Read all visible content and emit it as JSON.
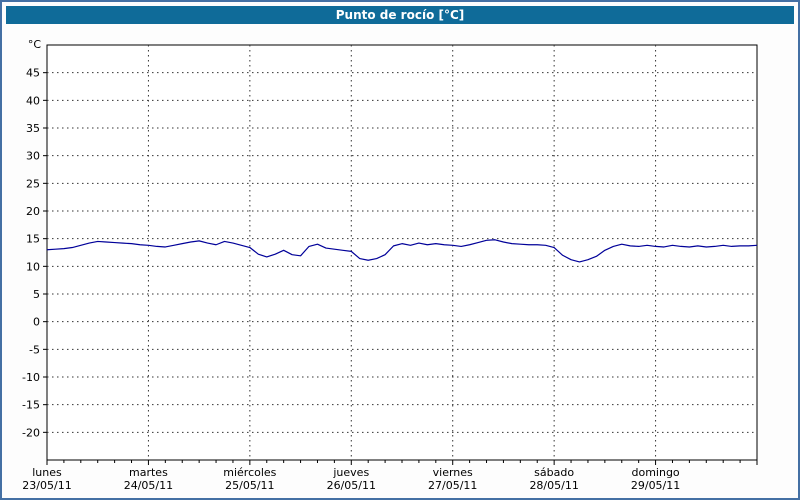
{
  "title": "Punto de rocío [°C]",
  "colors": {
    "title_bar_bg": "#0f6b99",
    "title_text": "#ffffff",
    "outer_border": "#4470a4",
    "page_bg": "#fdfdfd",
    "plot_bg": "#ffffff",
    "axis": "#000000",
    "grid": "#333333",
    "line": "#000099"
  },
  "chart_data": {
    "type": "line",
    "title": "Punto de rocío [°C]",
    "ylabel": "°C",
    "xlabel": "",
    "ylim": [
      -25,
      50
    ],
    "yticks": [
      45,
      40,
      35,
      30,
      25,
      20,
      15,
      10,
      5,
      0,
      -5,
      -10,
      -15,
      -20
    ],
    "grid": true,
    "legend_position": "none",
    "x_days": [
      {
        "name": "lunes",
        "date": "23/05/11"
      },
      {
        "name": "martes",
        "date": "24/05/11"
      },
      {
        "name": "miércoles",
        "date": "25/05/11"
      },
      {
        "name": "jueves",
        "date": "26/05/11"
      },
      {
        "name": "viernes",
        "date": "27/05/11"
      },
      {
        "name": "sábado",
        "date": "28/05/11"
      },
      {
        "name": "domingo",
        "date": "29/05/11"
      }
    ],
    "x_hours_span": 168,
    "sample_interval_hours": 2,
    "series": [
      {
        "name": "Punto de rocío",
        "color": "#000099",
        "values": [
          13.0,
          13.1,
          13.2,
          13.4,
          13.8,
          14.2,
          14.5,
          14.4,
          14.3,
          14.2,
          14.1,
          13.9,
          13.8,
          13.6,
          13.5,
          13.8,
          14.1,
          14.4,
          14.6,
          14.2,
          13.9,
          14.5,
          14.2,
          13.8,
          13.4,
          12.2,
          11.7,
          12.2,
          12.9,
          12.1,
          11.9,
          13.6,
          14.0,
          13.3,
          13.1,
          12.9,
          12.7,
          11.4,
          11.1,
          11.4,
          12.1,
          13.7,
          14.1,
          13.8,
          14.2,
          13.9,
          14.1,
          13.9,
          13.8,
          13.6,
          13.9,
          14.3,
          14.7,
          14.8,
          14.4,
          14.1,
          14.0,
          13.9,
          13.9,
          13.8,
          13.4,
          12.0,
          11.2,
          10.8,
          11.2,
          11.8,
          12.9,
          13.6,
          14.0,
          13.7,
          13.6,
          13.8,
          13.6,
          13.5,
          13.8,
          13.6,
          13.5,
          13.7,
          13.5,
          13.6,
          13.8,
          13.6,
          13.7,
          13.7,
          13.8
        ]
      }
    ]
  }
}
